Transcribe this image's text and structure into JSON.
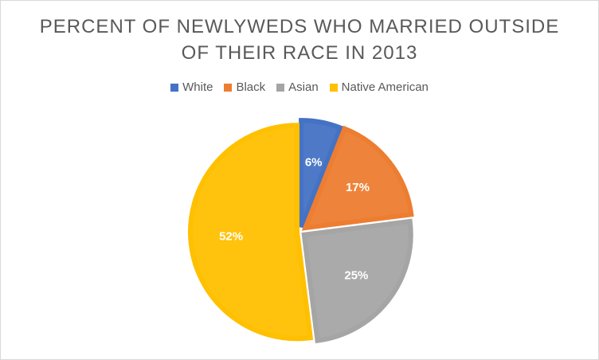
{
  "chart_data": {
    "type": "pie",
    "title_lines": [
      "PERCENT OF NEWLYWEDS WHO MARRIED OUTSIDE",
      "OF THEIR RACE IN 2013"
    ],
    "categories": [
      "White",
      "Black",
      "Asian",
      "Native American"
    ],
    "values": [
      6,
      17,
      25,
      52
    ],
    "value_labels": [
      "6%",
      "17%",
      "25%",
      "52%"
    ],
    "colors": [
      "#4472c4",
      "#ed7d31",
      "#a5a5a5",
      "#ffc000"
    ],
    "legend_position": "top"
  }
}
